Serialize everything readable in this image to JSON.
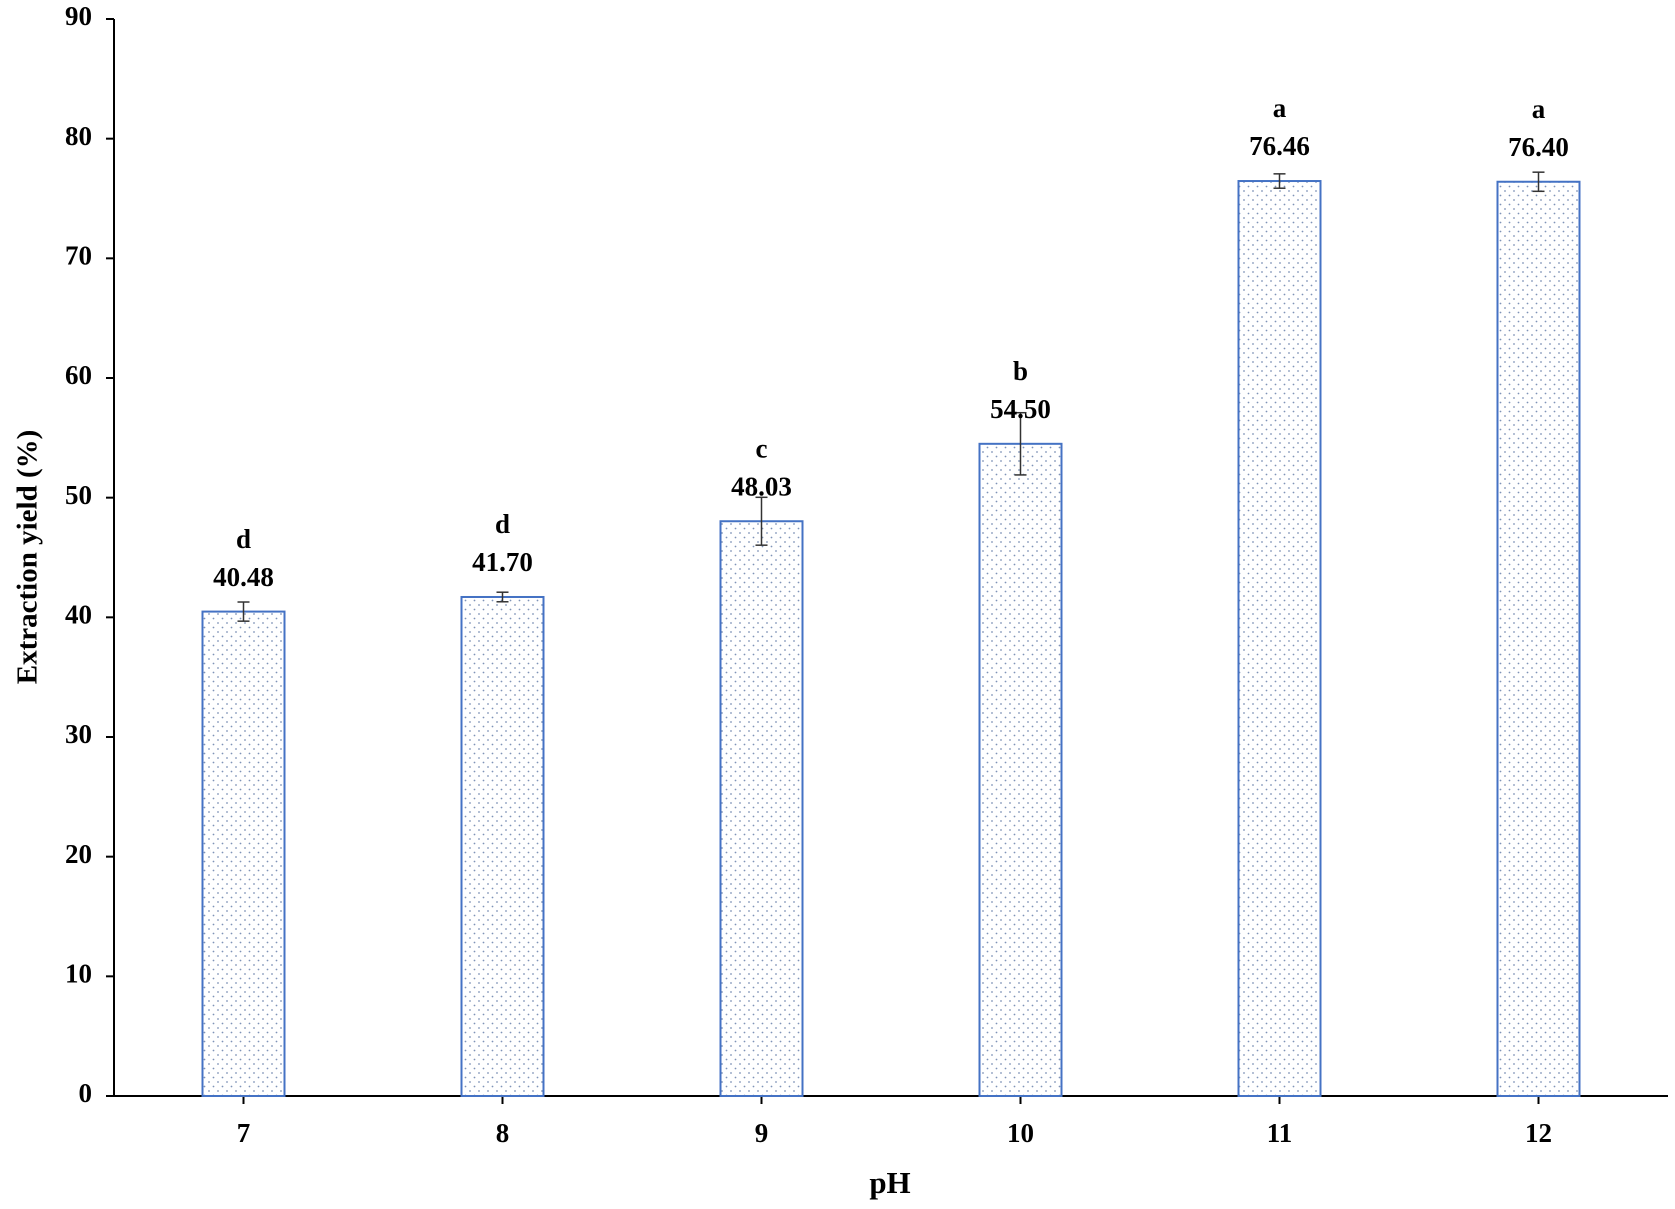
{
  "chart_data": {
    "type": "bar",
    "x_label": "pH",
    "y_label": "Extraction yield  (%)",
    "categories": [
      "7",
      "8",
      "9",
      "10",
      "11",
      "12"
    ],
    "values": [
      40.48,
      41.7,
      48.03,
      54.5,
      76.46,
      76.4
    ],
    "value_labels": [
      "40.48",
      "41.70",
      "48.03",
      "54.50",
      "76.46",
      "76.40"
    ],
    "errors": [
      0.8,
      0.4,
      2.0,
      2.6,
      0.6,
      0.8
    ],
    "letters": [
      "d",
      "d",
      "c",
      "b",
      "a",
      "a"
    ],
    "color": "#4472c4",
    "ylim": [
      0,
      90
    ],
    "yticks": [
      0,
      10,
      20,
      30,
      40,
      50,
      60,
      70,
      80,
      90
    ],
    "grid": false
  }
}
